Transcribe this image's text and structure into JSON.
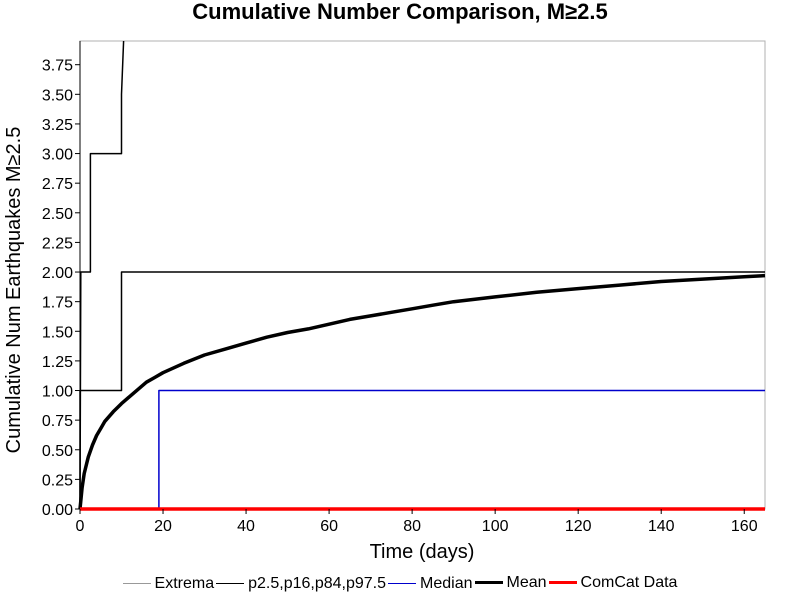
{
  "title": "Cumulative Number Comparison, M≥2.5",
  "chart_data": {
    "type": "line",
    "title": "Cumulative Number Comparison, M≥2.5",
    "xlabel": "Time (days)",
    "ylabel": "Cumulative Num Earthquakes M≥2.5",
    "xlim": [
      0,
      165
    ],
    "ylim": [
      0,
      3.95
    ],
    "x_ticks": [
      "0",
      "20",
      "40",
      "60",
      "80",
      "100",
      "120",
      "140",
      "160"
    ],
    "y_ticks": [
      "0.00",
      "0.25",
      "0.50",
      "0.75",
      "1.00",
      "1.25",
      "1.50",
      "1.75",
      "2.00",
      "2.25",
      "2.50",
      "2.75",
      "3.00",
      "3.25",
      "3.50",
      "3.75"
    ],
    "grid": false,
    "legend_position": "bottom",
    "series": [
      {
        "name": "Extrema",
        "color": "#999999",
        "width": 1,
        "points": []
      },
      {
        "name": "p2.5,p16,p84,p97.5",
        "color": "#000000",
        "width": 1.5,
        "lines": [
          [
            [
              0,
              0
            ],
            [
              0,
              1.0
            ],
            [
              10,
              1.0
            ],
            [
              10,
              2.0
            ],
            [
              165,
              2.0
            ]
          ],
          [
            [
              0,
              0
            ],
            [
              0.2,
              2.0
            ],
            [
              2.5,
              2.0
            ],
            [
              2.5,
              3.0
            ],
            [
              10,
              3.0
            ],
            [
              10,
              3.5
            ],
            [
              10.5,
              3.95
            ]
          ]
        ]
      },
      {
        "name": "Median",
        "color": "#0000cc",
        "width": 1.5,
        "points": [
          [
            0,
            0
          ],
          [
            19,
            0
          ],
          [
            19,
            1.0
          ],
          [
            165,
            1.0
          ]
        ]
      },
      {
        "name": "Mean",
        "color": "#000000",
        "width": 3.5,
        "points": [
          [
            0,
            0
          ],
          [
            0.5,
            0.18
          ],
          [
            1,
            0.3
          ],
          [
            2,
            0.44
          ],
          [
            3,
            0.54
          ],
          [
            4,
            0.62
          ],
          [
            5,
            0.68
          ],
          [
            6,
            0.74
          ],
          [
            8,
            0.82
          ],
          [
            10,
            0.89
          ],
          [
            12,
            0.95
          ],
          [
            14,
            1.01
          ],
          [
            16,
            1.07
          ],
          [
            18,
            1.11
          ],
          [
            20,
            1.15
          ],
          [
            25,
            1.23
          ],
          [
            30,
            1.3
          ],
          [
            35,
            1.35
          ],
          [
            40,
            1.4
          ],
          [
            45,
            1.45
          ],
          [
            50,
            1.49
          ],
          [
            55,
            1.52
          ],
          [
            60,
            1.56
          ],
          [
            65,
            1.6
          ],
          [
            70,
            1.63
          ],
          [
            75,
            1.66
          ],
          [
            80,
            1.69
          ],
          [
            85,
            1.72
          ],
          [
            90,
            1.75
          ],
          [
            100,
            1.79
          ],
          [
            110,
            1.83
          ],
          [
            120,
            1.86
          ],
          [
            130,
            1.89
          ],
          [
            140,
            1.92
          ],
          [
            150,
            1.94
          ],
          [
            160,
            1.96
          ],
          [
            165,
            1.97
          ]
        ]
      },
      {
        "name": "ComCat Data",
        "color": "#ff0000",
        "width": 3.5,
        "points": [
          [
            0,
            0
          ],
          [
            165,
            0
          ]
        ]
      }
    ]
  }
}
